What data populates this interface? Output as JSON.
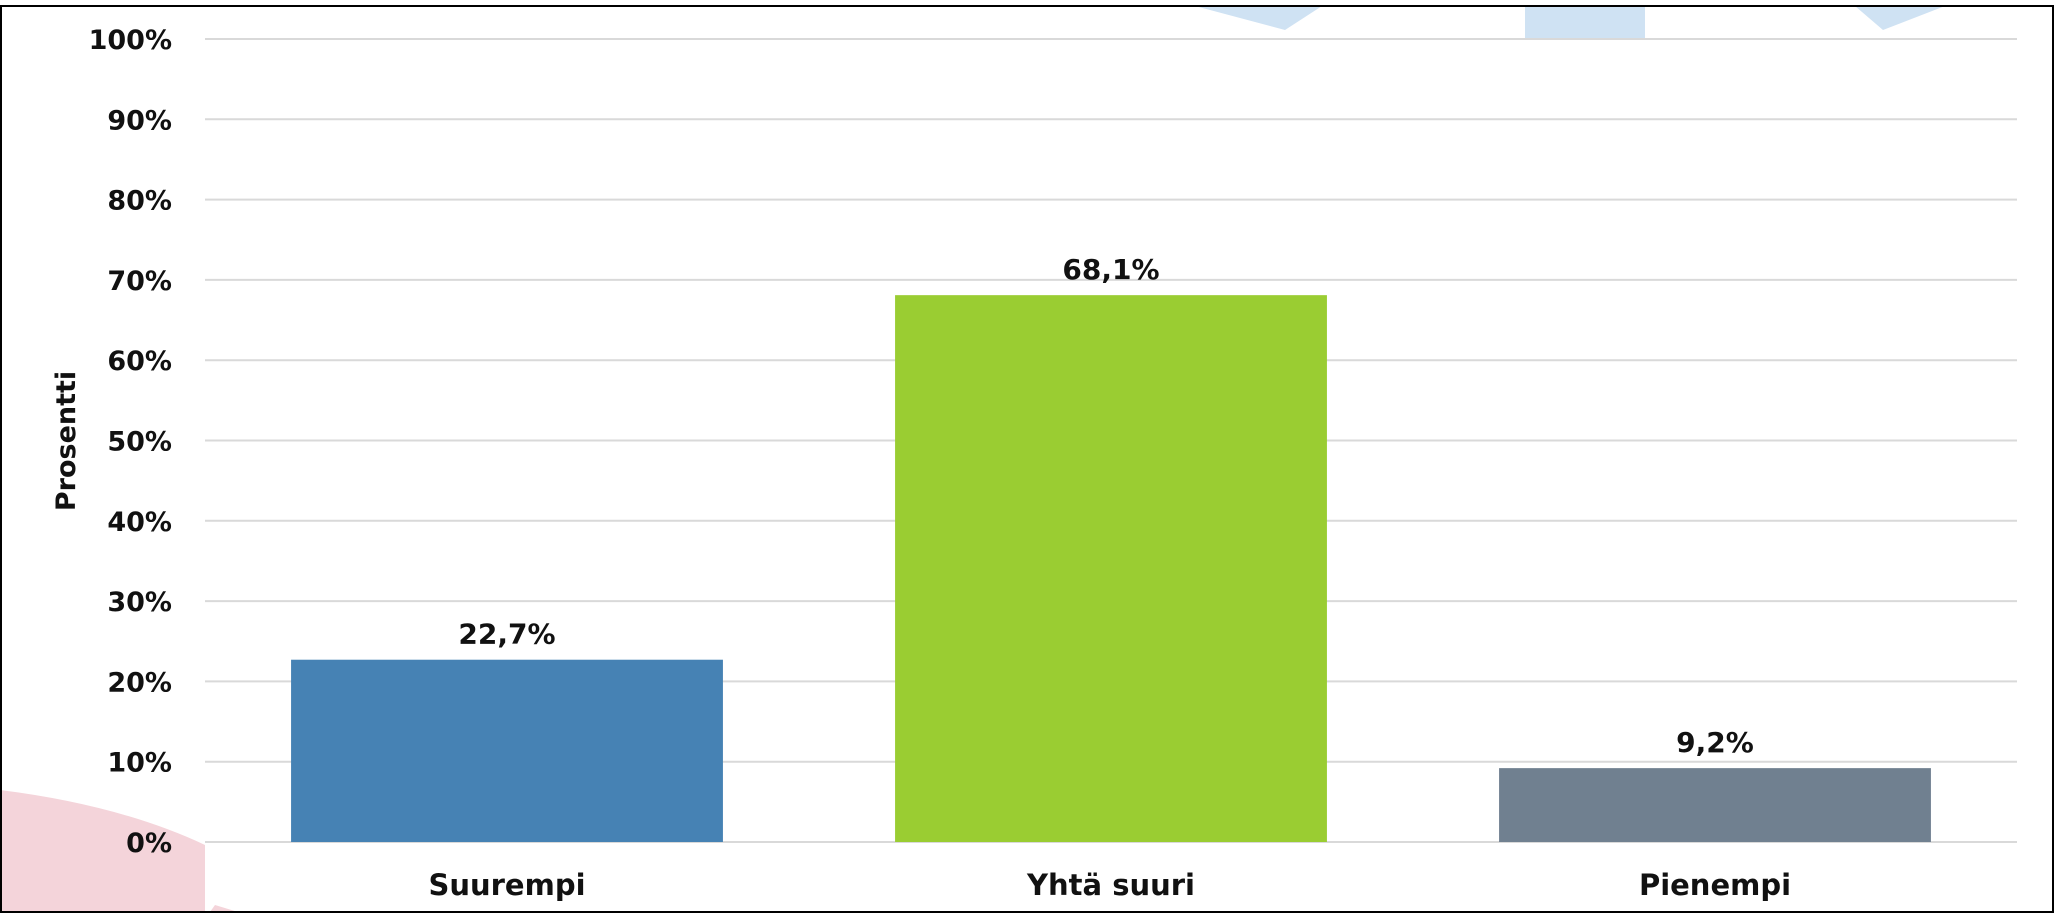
{
  "chart_data": {
    "type": "bar",
    "title": "",
    "xlabel": "",
    "ylabel": "Prosentti",
    "categories": [
      "Suurempi",
      "Yhtä suuri",
      "Pienempi"
    ],
    "values": [
      22.7,
      68.1,
      9.2
    ],
    "value_labels": [
      "22,7%",
      "68,1%",
      "9,2%"
    ],
    "bar_colors": [
      "#4682b4",
      "#9acd32",
      "#708090"
    ],
    "ylim": [
      0,
      100
    ],
    "yticks": [
      0,
      10,
      20,
      30,
      40,
      50,
      60,
      70,
      80,
      90,
      100
    ],
    "ytick_labels": [
      "0%",
      "10%",
      "20%",
      "30%",
      "40%",
      "50%",
      "60%",
      "70%",
      "80%",
      "90%",
      "100%"
    ],
    "grid": true,
    "legend": "none"
  },
  "colors": {
    "grid": "#d9d9d9",
    "border": "#000000",
    "text": "#111111",
    "decor_blue": "#cfe2f3",
    "decor_pink": "#f4d4da"
  }
}
